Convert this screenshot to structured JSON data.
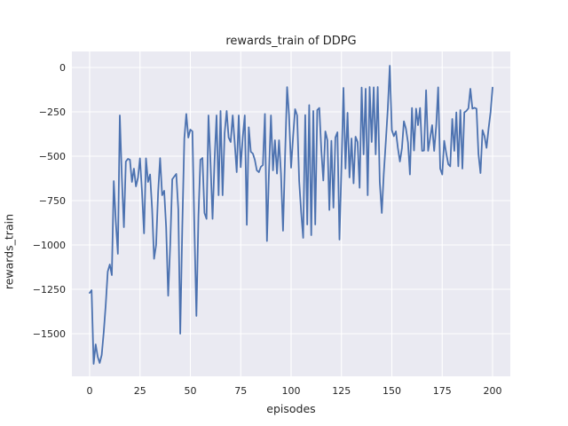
{
  "chart_data": {
    "type": "line",
    "title": "rewards_train of DDPG",
    "xlabel": "episodes",
    "ylabel": "rewards_train",
    "grid": true,
    "legend": "none",
    "x_start": 0,
    "x_step": 1,
    "xlim": [
      -8.8,
      208.8
    ],
    "ylim": [
      -1740,
      90
    ],
    "x_ticks": [
      0,
      25,
      50,
      75,
      100,
      125,
      150,
      175,
      200
    ],
    "y_ticks": [
      0,
      -250,
      -500,
      -750,
      -1000,
      -1250,
      -1500
    ],
    "style": {
      "figure_bg": "#ffffff",
      "axes_bg": "#EAEAF2",
      "grid_color": "#ffffff",
      "line_color": "#4C72B0",
      "text_color": "#262626"
    },
    "series": [
      {
        "name": "rewards_train",
        "color": "#4C72B0",
        "values": [
          -1270,
          -1255,
          -1670,
          -1560,
          -1630,
          -1665,
          -1620,
          -1490,
          -1340,
          -1150,
          -1110,
          -1170,
          -640,
          -870,
          -1050,
          -270,
          -620,
          -900,
          -530,
          -515,
          -520,
          -645,
          -570,
          -670,
          -620,
          -512,
          -700,
          -935,
          -512,
          -645,
          -603,
          -800,
          -1078,
          -1000,
          -700,
          -511,
          -720,
          -695,
          -900,
          -1286,
          -1000,
          -630,
          -615,
          -600,
          -800,
          -1500,
          -900,
          -400,
          -262,
          -395,
          -350,
          -360,
          -895,
          -1400,
          -837,
          -520,
          -510,
          -820,
          -853,
          -270,
          -537,
          -853,
          -530,
          -270,
          -720,
          -245,
          -720,
          -370,
          -245,
          -395,
          -420,
          -270,
          -420,
          -590,
          -270,
          -562,
          -395,
          -270,
          -887,
          -337,
          -475,
          -485,
          -520,
          -580,
          -590,
          -560,
          -550,
          -262,
          -978,
          -600,
          -270,
          -580,
          -410,
          -598,
          -410,
          -598,
          -920,
          -500,
          -111,
          -270,
          -565,
          -385,
          -235,
          -270,
          -640,
          -820,
          -960,
          -268,
          -885,
          -212,
          -945,
          -245,
          -885,
          -240,
          -228,
          -470,
          -637,
          -360,
          -410,
          -803,
          -413,
          -790,
          -395,
          -365,
          -970,
          -553,
          -115,
          -570,
          -255,
          -620,
          -400,
          -653,
          -390,
          -420,
          -678,
          -113,
          -490,
          -120,
          -720,
          -110,
          -420,
          -112,
          -490,
          -110,
          -645,
          -820,
          -600,
          -420,
          -228,
          10,
          -353,
          -387,
          -360,
          -453,
          -530,
          -455,
          -303,
          -345,
          -423,
          -603,
          -228,
          -468,
          -232,
          -325,
          -228,
          -470,
          -468,
          -128,
          -470,
          -400,
          -325,
          -470,
          -330,
          -112,
          -570,
          -603,
          -413,
          -483,
          -545,
          -557,
          -290,
          -470,
          -253,
          -557,
          -240,
          -570,
          -253,
          -245,
          -230,
          -120,
          -232,
          -227,
          -232,
          -487,
          -595,
          -353,
          -387,
          -453,
          -345,
          -250,
          -113
        ]
      }
    ]
  }
}
